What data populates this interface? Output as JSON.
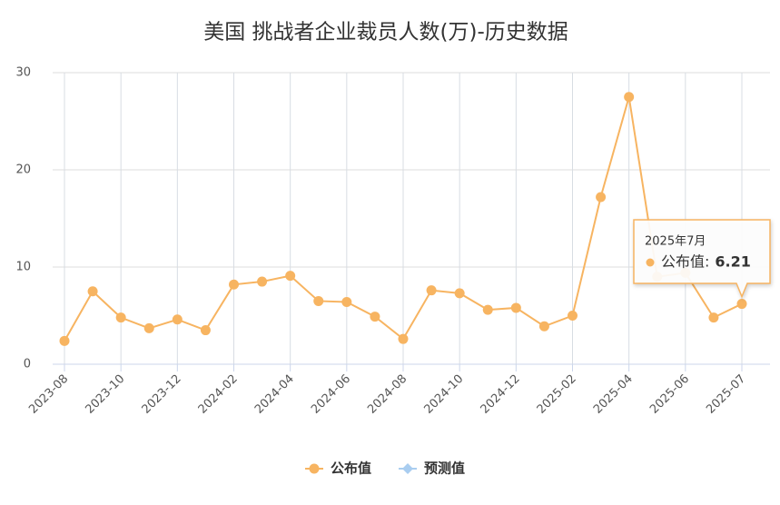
{
  "chart_data": {
    "type": "line",
    "title": "美国 挑战者企业裁员人数(万)-历史数据",
    "categories": [
      "2023-08",
      null,
      "2023-10",
      null,
      "2023-12",
      null,
      "2024-02",
      null,
      "2024-04",
      null,
      "2024-06",
      null,
      "2024-08",
      null,
      "2024-10",
      null,
      "2024-12",
      null,
      "2025-02",
      null,
      "2025-04",
      null,
      "2025-06",
      null,
      "2025-07"
    ],
    "series": [
      {
        "name": "公布值",
        "color": "#f7b461",
        "values": [
          2.4,
          7.5,
          4.8,
          3.7,
          4.6,
          3.5,
          8.2,
          8.5,
          9.1,
          6.5,
          6.4,
          4.9,
          2.6,
          7.6,
          7.3,
          5.6,
          5.8,
          3.9,
          5.0,
          17.2,
          27.5,
          9.0,
          9.4,
          4.8,
          6.21
        ]
      },
      {
        "name": "预测值",
        "color": "#a9cdf0",
        "values": [
          null,
          null,
          null,
          null,
          null,
          null,
          null,
          null,
          null,
          null,
          null,
          null,
          null,
          null,
          null,
          null,
          null,
          null,
          null,
          null,
          null,
          null,
          null,
          null,
          null
        ]
      }
    ],
    "ylim": [
      0,
      30
    ],
    "yticks": [
      0,
      10,
      20,
      30
    ],
    "grid": true,
    "tooltip": {
      "title": "2025年7月",
      "label": "公布值:"
    }
  }
}
